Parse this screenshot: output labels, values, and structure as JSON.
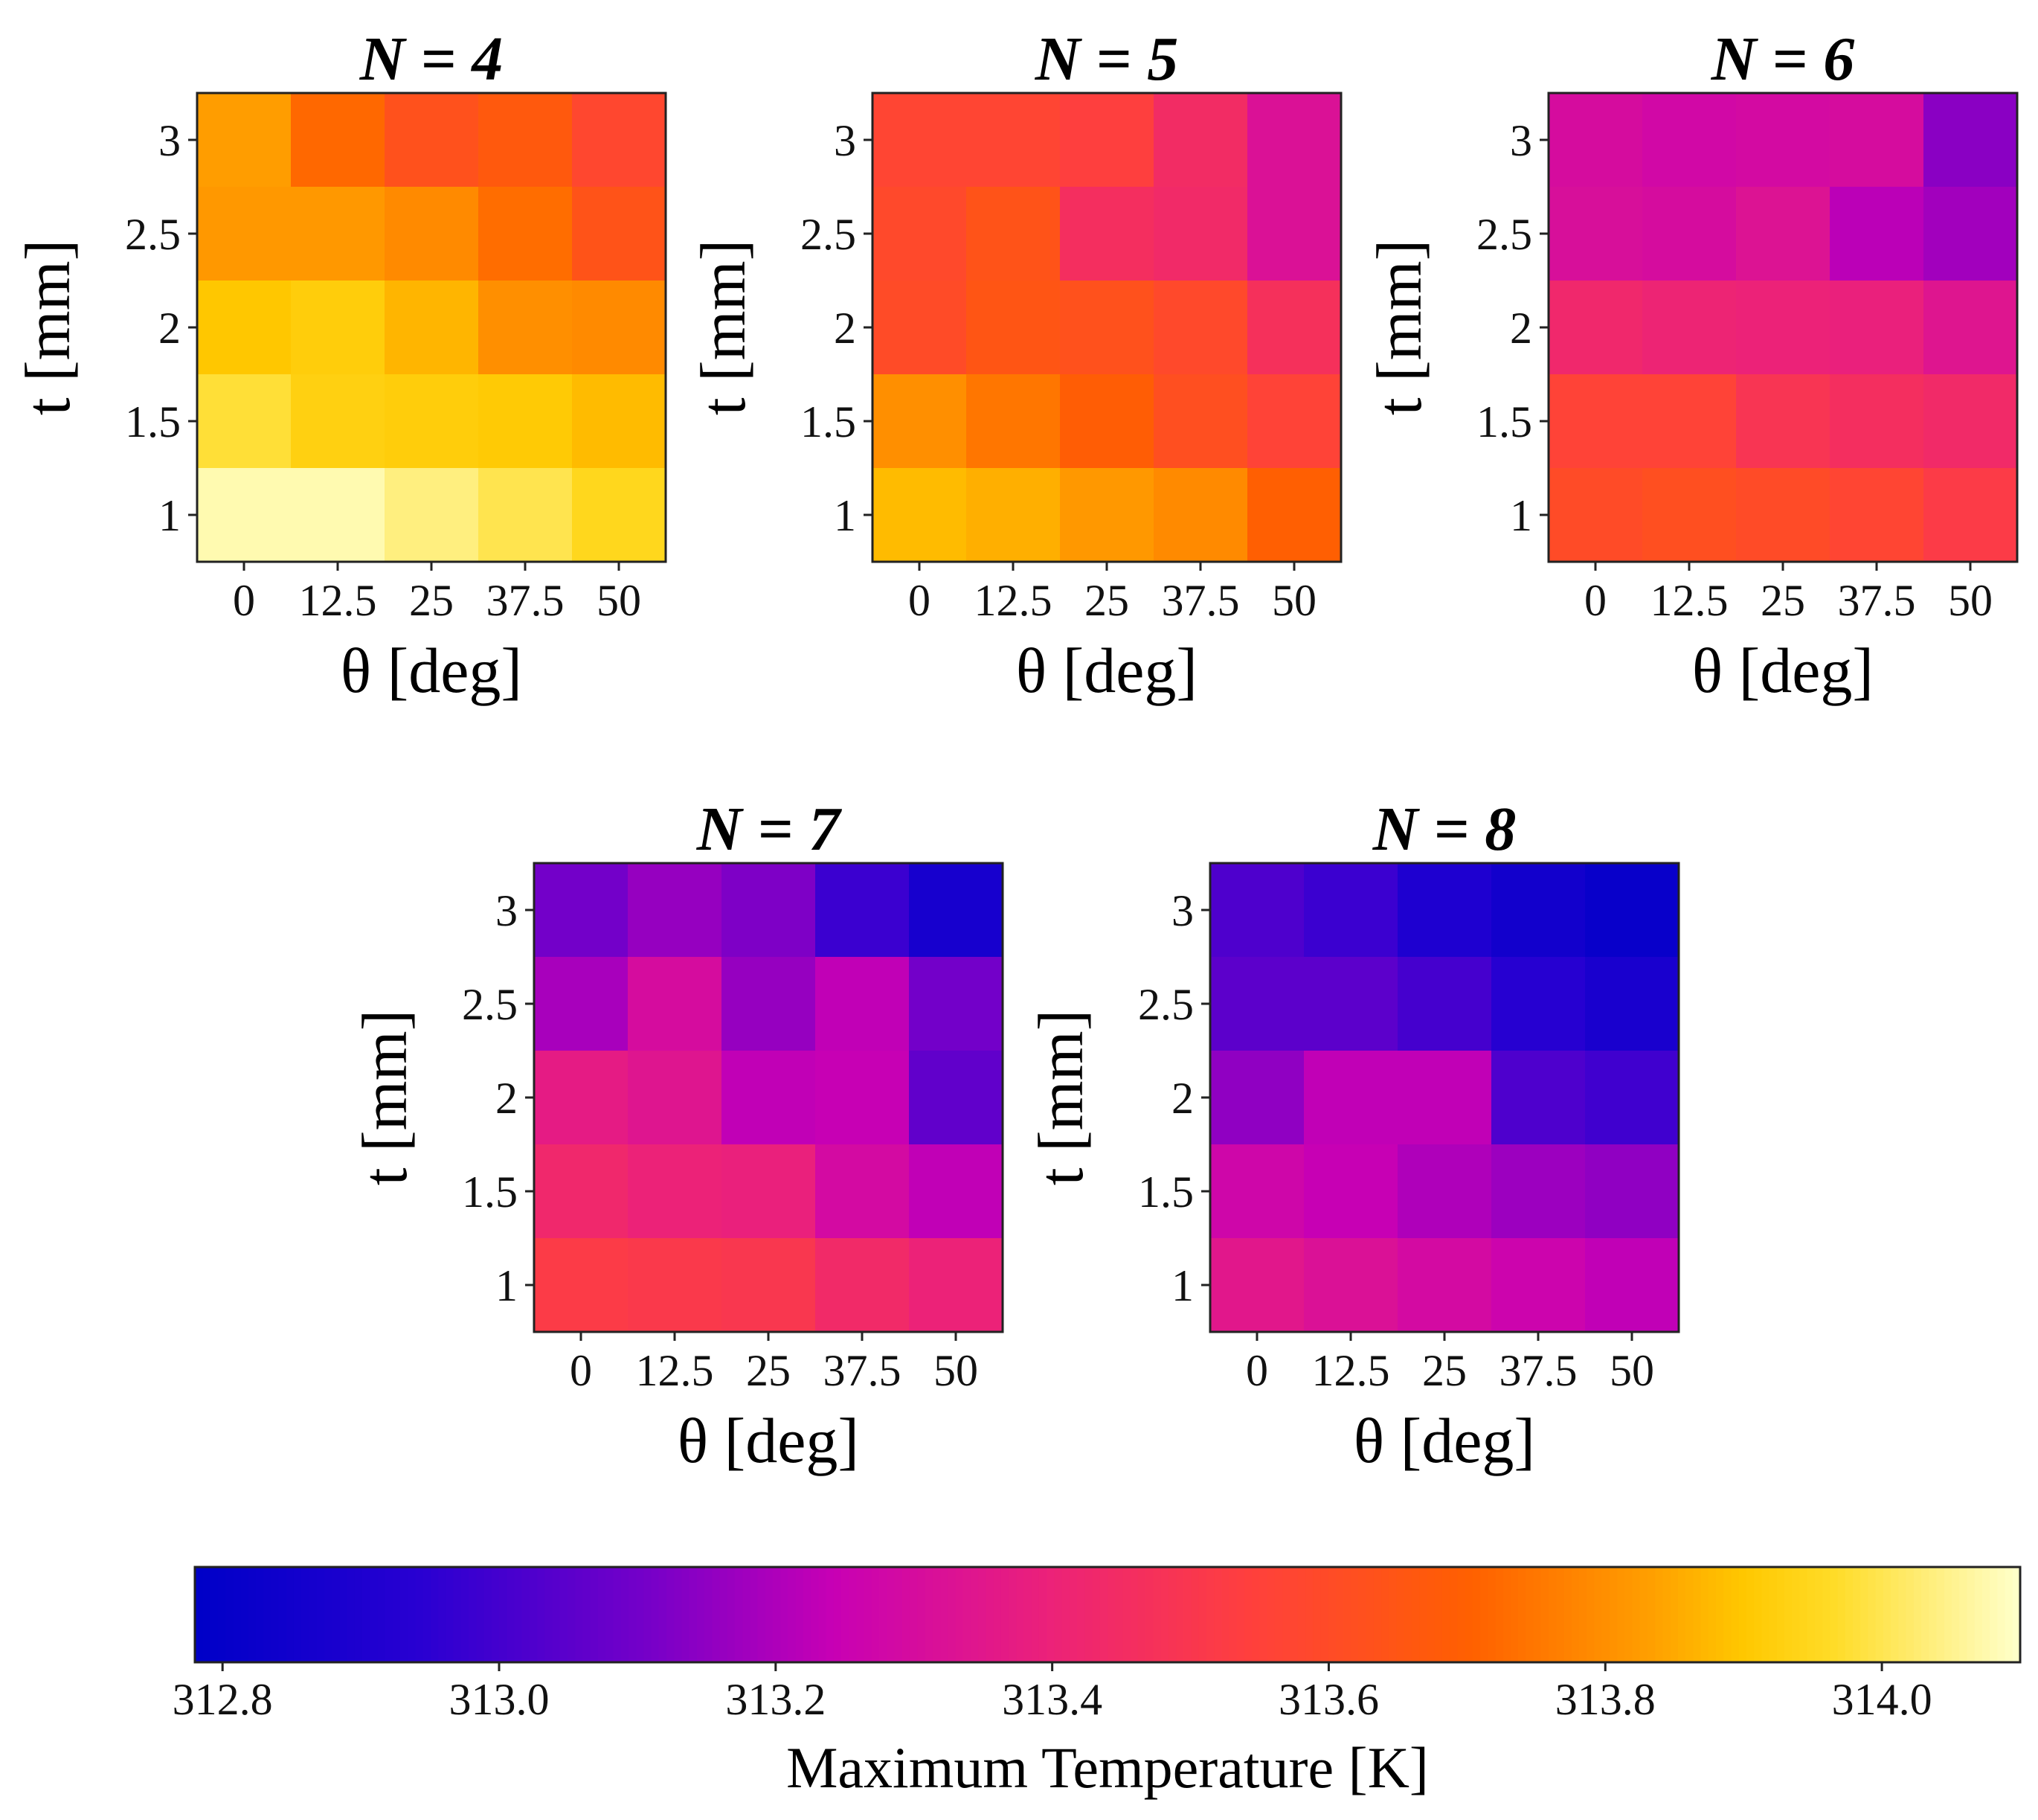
{
  "chart_data": {
    "type": "heatmap",
    "colormap": "plasma",
    "x_categories": [
      "0",
      "12.5",
      "25",
      "37.5",
      "50"
    ],
    "y_categories_top_to_bottom": [
      "3",
      "2.5",
      "2",
      "1.5",
      "1"
    ],
    "xlabel": "θ [deg]",
    "ylabel": "t [mm]",
    "value_range": [
      312.78,
      314.1
    ],
    "panels": [
      {
        "title_var": "N",
        "title_eq": " = ",
        "title_num": "4",
        "values": [
          [
            313.83,
            313.72,
            313.63,
            313.67,
            313.58
          ],
          [
            313.82,
            313.82,
            313.79,
            313.73,
            313.64
          ],
          [
            313.9,
            313.92,
            313.87,
            313.8,
            313.79
          ],
          [
            313.98,
            313.93,
            313.92,
            313.91,
            313.88
          ],
          [
            314.08,
            314.08,
            314.04,
            314.0,
            313.95
          ]
        ]
      },
      {
        "title_var": "N",
        "title_eq": " = ",
        "title_num": "5",
        "values": [
          [
            313.57,
            313.57,
            313.54,
            313.45,
            313.32
          ],
          [
            313.59,
            313.64,
            313.46,
            313.44,
            313.32
          ],
          [
            313.6,
            313.65,
            313.63,
            313.59,
            313.47
          ],
          [
            313.8,
            313.75,
            313.69,
            313.62,
            313.56
          ],
          [
            313.88,
            313.86,
            313.82,
            313.79,
            313.7
          ]
        ]
      },
      {
        "title_var": "N",
        "title_eq": " = ",
        "title_num": "6",
        "values": [
          [
            313.3,
            313.28,
            313.29,
            313.3,
            313.14
          ],
          [
            313.31,
            313.3,
            313.33,
            313.22,
            313.18
          ],
          [
            313.43,
            313.41,
            313.4,
            313.39,
            313.34
          ],
          [
            313.56,
            313.56,
            313.49,
            313.46,
            313.44
          ],
          [
            313.6,
            313.62,
            313.6,
            313.57,
            313.52
          ]
        ]
      },
      {
        "title_var": "N",
        "title_eq": " = ",
        "title_num": "7",
        "values": [
          [
            313.1,
            313.16,
            313.12,
            312.98,
            312.87
          ],
          [
            313.19,
            313.3,
            313.16,
            313.23,
            313.1
          ],
          [
            313.37,
            313.34,
            313.23,
            313.24,
            313.06
          ],
          [
            313.43,
            313.4,
            313.39,
            313.29,
            313.23
          ],
          [
            313.52,
            313.51,
            313.5,
            313.44,
            313.4
          ]
        ]
      },
      {
        "title_var": "N",
        "title_eq": " = ",
        "title_num": "8",
        "values": [
          [
            313.02,
            312.98,
            312.9,
            312.85,
            312.81
          ],
          [
            313.05,
            313.05,
            313.0,
            312.93,
            312.88
          ],
          [
            313.15,
            313.23,
            313.23,
            313.02,
            312.99
          ],
          [
            313.27,
            313.24,
            313.2,
            313.17,
            313.15
          ],
          [
            313.35,
            313.32,
            313.29,
            313.26,
            313.23
          ]
        ]
      }
    ],
    "colorbar": {
      "label": "Maximum Temperature [K]",
      "ticks": [
        "312.8",
        "313.0",
        "313.2",
        "313.4",
        "313.6",
        "313.8",
        "314.0"
      ]
    }
  }
}
